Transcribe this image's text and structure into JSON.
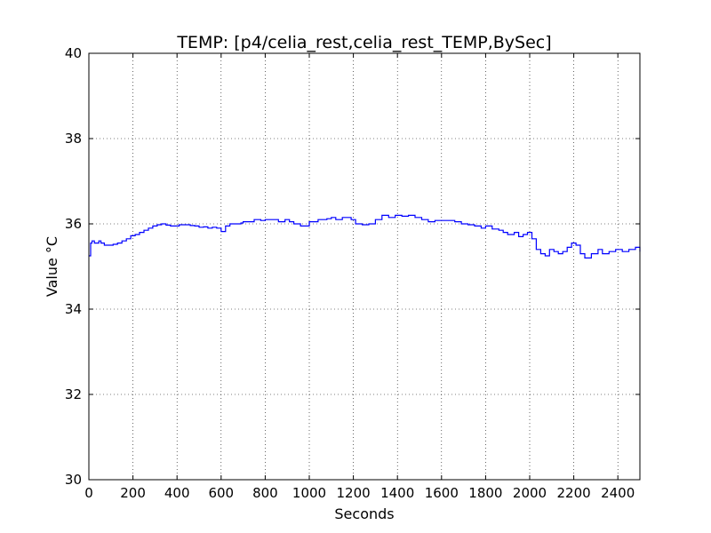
{
  "chart_data": {
    "type": "line",
    "title": "TEMP: [p4/celia_rest,celia_rest_TEMP,BySec]",
    "xlabel": "Seconds",
    "ylabel": "Value °C",
    "xlim": [
      0,
      2500
    ],
    "ylim": [
      30,
      40
    ],
    "x_ticks": [
      "0",
      "200",
      "400",
      "600",
      "800",
      "1000",
      "1200",
      "1400",
      "1600",
      "1800",
      "2000",
      "2200",
      "2400"
    ],
    "y_ticks": [
      "30",
      "32",
      "34",
      "36",
      "38",
      "40"
    ],
    "grid": true,
    "line_style": "steps",
    "series": [
      {
        "color": "#0000ff",
        "x": [
          0,
          8,
          14,
          25,
          45,
          55,
          70,
          90,
          110,
          130,
          150,
          170,
          190,
          210,
          230,
          250,
          270,
          290,
          310,
          330,
          350,
          370,
          390,
          410,
          440,
          460,
          480,
          500,
          520,
          540,
          560,
          580,
          600,
          620,
          640,
          660,
          690,
          700,
          720,
          750,
          780,
          800,
          830,
          860,
          890,
          910,
          930,
          960,
          1000,
          1040,
          1080,
          1100,
          1120,
          1150,
          1190,
          1210,
          1240,
          1270,
          1300,
          1330,
          1360,
          1390,
          1420,
          1450,
          1480,
          1510,
          1540,
          1570,
          1600,
          1630,
          1660,
          1690,
          1720,
          1750,
          1780,
          1800,
          1830,
          1860,
          1880,
          1900,
          1930,
          1950,
          1970,
          1990,
          2010,
          2030,
          2050,
          2070,
          2090,
          2110,
          2130,
          2150,
          2170,
          2190,
          2210,
          2230,
          2250,
          2280,
          2310,
          2330,
          2360,
          2390,
          2420,
          2450,
          2480,
          2500
        ],
        "y": [
          35.25,
          35.55,
          35.6,
          35.55,
          35.6,
          35.55,
          35.5,
          35.5,
          35.52,
          35.55,
          35.6,
          35.65,
          35.72,
          35.75,
          35.8,
          35.85,
          35.9,
          35.95,
          35.98,
          36.0,
          35.97,
          35.95,
          35.95,
          35.98,
          35.98,
          35.96,
          35.95,
          35.92,
          35.93,
          35.9,
          35.92,
          35.9,
          35.82,
          35.95,
          36.0,
          36.0,
          36.02,
          36.05,
          36.05,
          36.1,
          36.08,
          36.1,
          36.1,
          36.05,
          36.1,
          36.05,
          36.0,
          35.95,
          36.05,
          36.1,
          36.12,
          36.15,
          36.1,
          36.15,
          36.1,
          36.0,
          35.98,
          36.0,
          36.1,
          36.2,
          36.15,
          36.2,
          36.18,
          36.2,
          36.15,
          36.1,
          36.05,
          36.08,
          36.08,
          36.08,
          36.05,
          36.0,
          35.98,
          35.95,
          35.9,
          35.95,
          35.88,
          35.85,
          35.8,
          35.75,
          35.8,
          35.7,
          35.75,
          35.8,
          35.65,
          35.4,
          35.3,
          35.25,
          35.4,
          35.35,
          35.3,
          35.35,
          35.45,
          35.55,
          35.5,
          35.3,
          35.2,
          35.3,
          35.4,
          35.3,
          35.35,
          35.4,
          35.35,
          35.4,
          35.45,
          35.35
        ]
      }
    ]
  }
}
